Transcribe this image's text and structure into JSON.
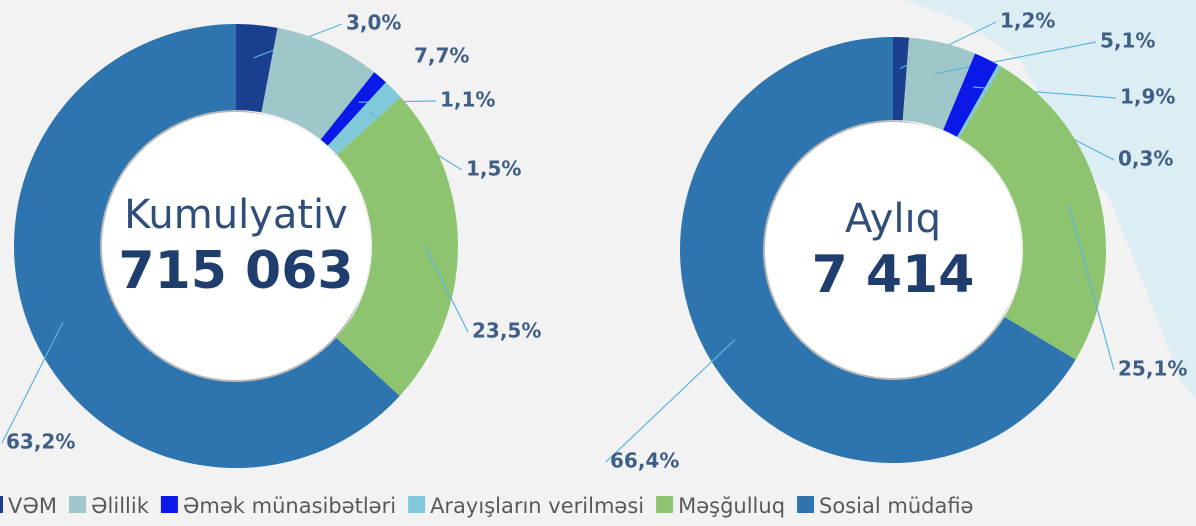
{
  "chart_data": [
    {
      "type": "pie",
      "center_title": "Kumulyativ",
      "center_value": "715 063",
      "categories": [
        "VƏM",
        "Əlillik",
        "Əmək münasibətləri",
        "Arayışların verilməsi",
        "Məşğulluq",
        "Sosial müdafiə"
      ],
      "colors": [
        "#1b3f8f",
        "#9fc6c8",
        "#0a18e8",
        "#7fc9da",
        "#8ec470",
        "#2e75b0"
      ],
      "values": [
        3.0,
        7.7,
        1.1,
        1.5,
        23.5,
        63.2
      ],
      "value_labels": [
        "3,0%",
        "7,7%",
        "1,1%",
        "1,5%",
        "23,5%",
        "63,2%"
      ]
    },
    {
      "type": "pie",
      "center_title": "Aylıq",
      "center_value": "7 414",
      "categories": [
        "VƏM",
        "Əlillik",
        "Əmək münasibətləri",
        "Arayışların verilməsi",
        "Məşğulluq",
        "Sosial müdafiə"
      ],
      "colors": [
        "#1b3f8f",
        "#9fc6c8",
        "#0a18e8",
        "#7fc9da",
        "#8ec470",
        "#2e75b0"
      ],
      "values": [
        1.2,
        5.1,
        1.9,
        0.3,
        25.1,
        66.4
      ],
      "value_labels": [
        "1,2%",
        "5,1%",
        "1,9%",
        "0,3%",
        "25,1%",
        "66,4%"
      ]
    }
  ]
}
